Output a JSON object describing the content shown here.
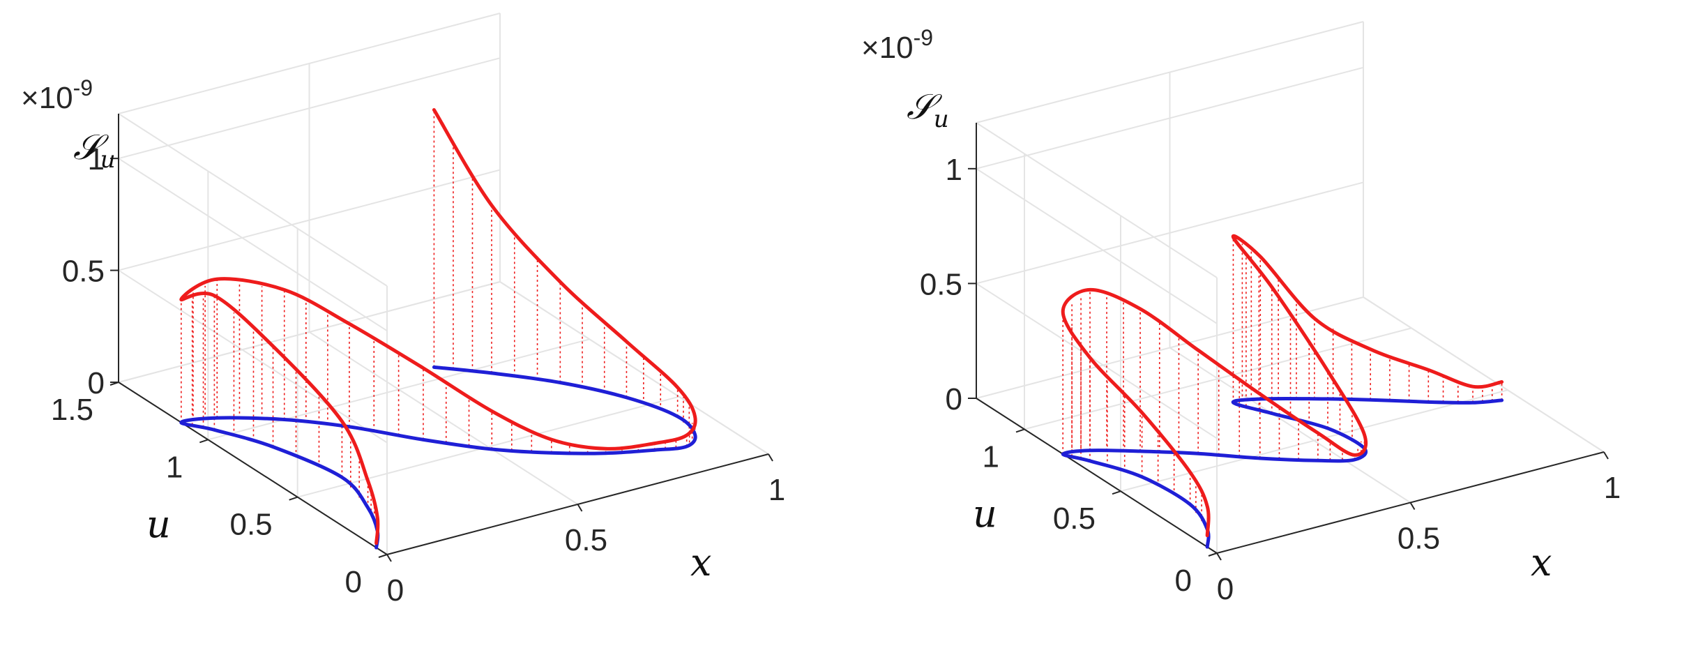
{
  "chart_data": [
    {
      "type": "line",
      "view": "3d",
      "grid": true,
      "exponent_label": "×10-9",
      "xlabel": "x",
      "ylabel": "u",
      "zlabel": "𝒮",
      "zlabel_sub": "u",
      "xlim": [
        0,
        1
      ],
      "ylim": [
        0,
        1.5
      ],
      "zlim": [
        0,
        1.2
      ],
      "x_ticks": [
        "0",
        "0.5",
        "1"
      ],
      "y_ticks": [
        "0",
        "0.5",
        "1",
        "1.5"
      ],
      "z_ticks": [
        "0",
        "0.5",
        "1"
      ],
      "series": [
        {
          "color": "#1f1fd6",
          "role": "curve in (x,u) plane",
          "points": [
            [
              0.0,
              0.06
            ],
            [
              0.05,
              0.16
            ],
            [
              0.1,
              0.32
            ],
            [
              0.14,
              0.55
            ],
            [
              0.1,
              0.85
            ],
            [
              0.04,
              1.05
            ],
            [
              0.0,
              1.15
            ],
            [
              0.08,
              1.12
            ],
            [
              0.2,
              1.0
            ],
            [
              0.3,
              0.85
            ],
            [
              0.4,
              0.65
            ],
            [
              0.5,
              0.48
            ],
            [
              0.6,
              0.36
            ],
            [
              0.7,
              0.27
            ],
            [
              0.8,
              0.21
            ],
            [
              0.87,
              0.18
            ],
            [
              0.92,
              0.24
            ],
            [
              0.94,
              0.38
            ],
            [
              0.9,
              0.58
            ],
            [
              0.82,
              0.78
            ],
            [
              0.72,
              0.95
            ],
            [
              0.63,
              1.08
            ]
          ]
        },
        {
          "color": "#ee1c1c",
          "role": "stem tops",
          "points": [
            [
              0.0,
              0.06,
              0.02
            ],
            [
              0.05,
              0.16,
              0.06
            ],
            [
              0.1,
              0.32,
              0.12
            ],
            [
              0.14,
              0.55,
              0.25
            ],
            [
              0.1,
              0.85,
              0.45
            ],
            [
              0.04,
              1.05,
              0.6
            ],
            [
              0.0,
              1.15,
              0.55
            ],
            [
              0.08,
              1.12,
              0.62
            ],
            [
              0.2,
              1.0,
              0.58
            ],
            [
              0.3,
              0.85,
              0.46
            ],
            [
              0.4,
              0.65,
              0.32
            ],
            [
              0.5,
              0.48,
              0.17
            ],
            [
              0.6,
              0.36,
              0.06
            ],
            [
              0.7,
              0.27,
              0.02
            ],
            [
              0.8,
              0.21,
              0.03
            ],
            [
              0.87,
              0.18,
              0.05
            ],
            [
              0.92,
              0.24,
              0.08
            ],
            [
              0.94,
              0.38,
              0.13
            ],
            [
              0.9,
              0.58,
              0.25
            ],
            [
              0.82,
              0.78,
              0.45
            ],
            [
              0.72,
              0.95,
              0.75
            ],
            [
              0.63,
              1.08,
              1.15
            ]
          ]
        }
      ]
    },
    {
      "type": "line",
      "view": "3d",
      "grid": true,
      "exponent_label": "×10-9",
      "xlabel": "x",
      "ylabel": "u",
      "zlabel": "𝒮",
      "zlabel_sub": "u",
      "xlim": [
        0,
        1
      ],
      "ylim": [
        0,
        1.25
      ],
      "zlim": [
        0,
        1.2
      ],
      "x_ticks": [
        "0",
        "0.5",
        "1"
      ],
      "y_ticks": [
        "0",
        "0.5",
        "1"
      ],
      "z_ticks": [
        "0",
        "0.5",
        "1"
      ],
      "series": [
        {
          "color": "#1f1fd6",
          "role": "curve in (x,u) plane",
          "points": [
            [
              0.0,
              0.05
            ],
            [
              0.05,
              0.15
            ],
            [
              0.09,
              0.32
            ],
            [
              0.08,
              0.55
            ],
            [
              0.03,
              0.72
            ],
            [
              0.0,
              0.8
            ],
            [
              0.06,
              0.78
            ],
            [
              0.15,
              0.7
            ],
            [
              0.25,
              0.6
            ],
            [
              0.35,
              0.48
            ],
            [
              0.45,
              0.38
            ],
            [
              0.52,
              0.33
            ],
            [
              0.57,
              0.38
            ],
            [
              0.56,
              0.55
            ],
            [
              0.5,
              0.72
            ],
            [
              0.46,
              0.84
            ],
            [
              0.52,
              0.82
            ],
            [
              0.62,
              0.74
            ],
            [
              0.72,
              0.65
            ],
            [
              0.82,
              0.55
            ],
            [
              0.9,
              0.48
            ],
            [
              0.96,
              0.45
            ]
          ]
        },
        {
          "color": "#ee1c1c",
          "role": "stem tops",
          "points": [
            [
              0.0,
              0.05,
              0.05
            ],
            [
              0.05,
              0.15,
              0.1
            ],
            [
              0.09,
              0.32,
              0.14
            ],
            [
              0.08,
              0.55,
              0.28
            ],
            [
              0.03,
              0.72,
              0.45
            ],
            [
              0.0,
              0.8,
              0.62
            ],
            [
              0.06,
              0.78,
              0.7
            ],
            [
              0.15,
              0.7,
              0.62
            ],
            [
              0.25,
              0.6,
              0.45
            ],
            [
              0.35,
              0.48,
              0.28
            ],
            [
              0.45,
              0.38,
              0.12
            ],
            [
              0.52,
              0.33,
              0.02
            ],
            [
              0.57,
              0.38,
              0.06
            ],
            [
              0.56,
              0.55,
              0.25
            ],
            [
              0.5,
              0.72,
              0.55
            ],
            [
              0.46,
              0.84,
              0.72
            ],
            [
              0.52,
              0.82,
              0.62
            ],
            [
              0.62,
              0.74,
              0.35
            ],
            [
              0.72,
              0.65,
              0.22
            ],
            [
              0.82,
              0.55,
              0.14
            ],
            [
              0.9,
              0.48,
              0.07
            ],
            [
              0.96,
              0.45,
              0.08
            ]
          ]
        }
      ]
    }
  ]
}
